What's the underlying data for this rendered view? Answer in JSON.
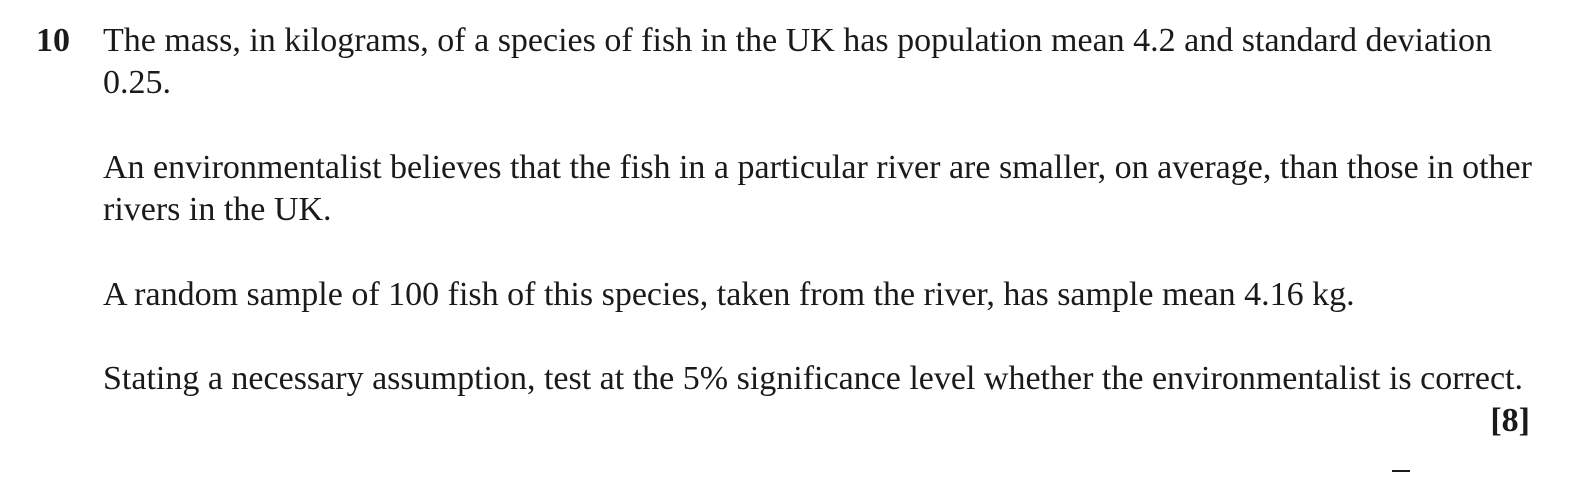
{
  "question": {
    "number": "10",
    "paragraphs": [
      "The mass, in kilograms, of a species of fish in the UK has population mean 4.2 and standard deviation 0.25.",
      "An environmentalist believes that the fish in a particular river are smaller, on average, than those in other rivers in the UK.",
      "A random sample of 100 fish of this species, taken from the river, has sample mean 4.16 kg.",
      "Stating a necessary assumption, test at the 5% significance level whether the environmentalist is correct."
    ],
    "marks": "[8]"
  }
}
